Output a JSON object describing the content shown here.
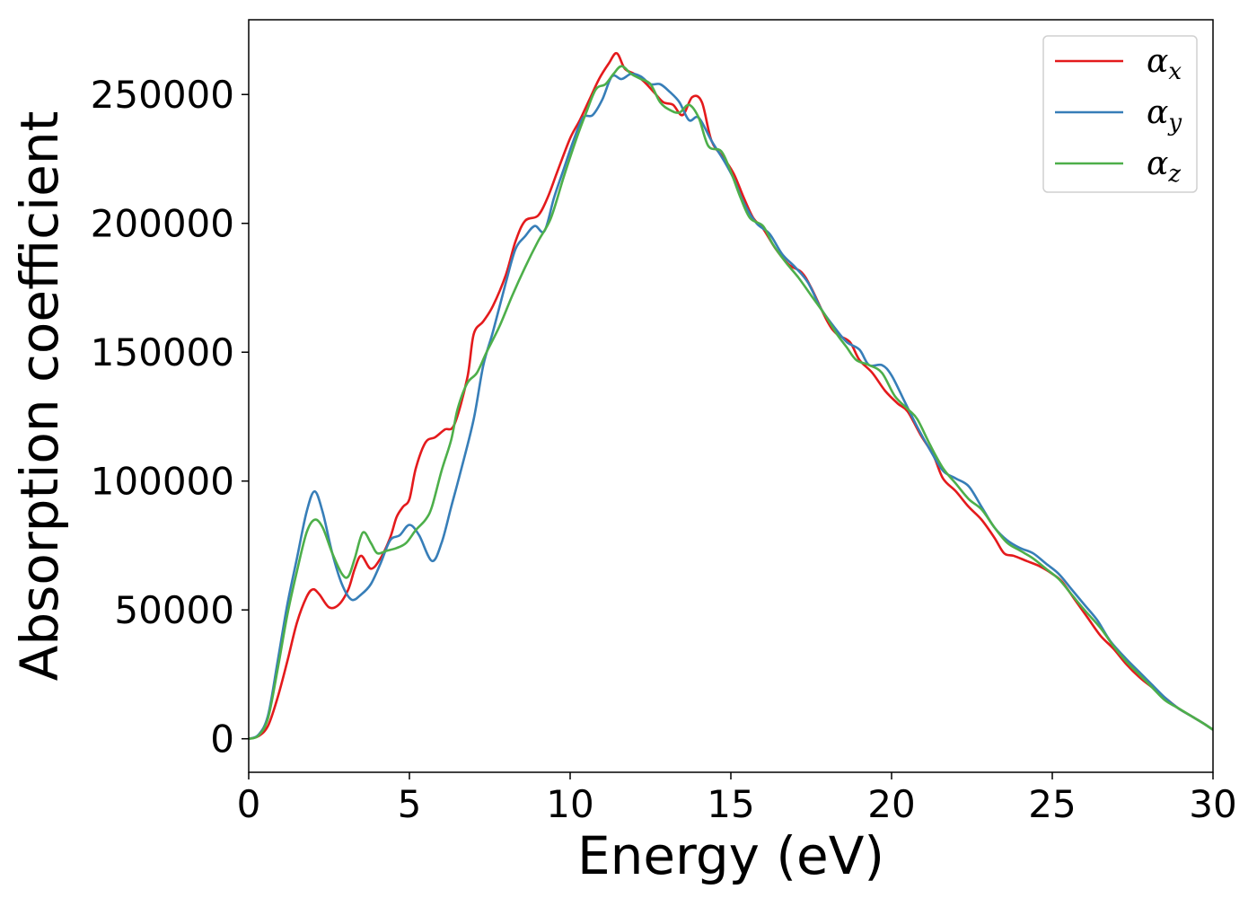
{
  "chart_data": {
    "type": "line",
    "xlabel": "Energy (eV)",
    "ylabel": "Absorption coefficient",
    "xlim": [
      0,
      30
    ],
    "ylim": [
      -13000,
      279000
    ],
    "xticks": [
      0,
      5,
      10,
      15,
      20,
      25,
      30
    ],
    "yticks": [
      0,
      50000,
      100000,
      150000,
      200000,
      250000
    ],
    "grid": false,
    "legend_position": "top-right",
    "series": [
      {
        "name": "α",
        "subscript": "x",
        "color": "#e41a1c",
        "points": [
          [
            0,
            0
          ],
          [
            0.3,
            1000
          ],
          [
            0.6,
            5000
          ],
          [
            0.9,
            16000
          ],
          [
            1.2,
            30000
          ],
          [
            1.5,
            45000
          ],
          [
            1.8,
            55000
          ],
          [
            2.0,
            58000
          ],
          [
            2.2,
            56000
          ],
          [
            2.5,
            51000
          ],
          [
            2.8,
            52000
          ],
          [
            3.1,
            58000
          ],
          [
            3.3,
            66000
          ],
          [
            3.5,
            71000
          ],
          [
            3.8,
            66000
          ],
          [
            4.1,
            70000
          ],
          [
            4.4,
            78000
          ],
          [
            4.6,
            86000
          ],
          [
            4.8,
            90000
          ],
          [
            5.0,
            93000
          ],
          [
            5.2,
            105000
          ],
          [
            5.5,
            115000
          ],
          [
            5.8,
            117000
          ],
          [
            6.1,
            120000
          ],
          [
            6.4,
            122000
          ],
          [
            6.8,
            140000
          ],
          [
            7.0,
            157000
          ],
          [
            7.3,
            162000
          ],
          [
            7.6,
            168000
          ],
          [
            8.0,
            180000
          ],
          [
            8.3,
            193000
          ],
          [
            8.6,
            201000
          ],
          [
            9.0,
            203000
          ],
          [
            9.3,
            210000
          ],
          [
            9.6,
            220000
          ],
          [
            10.0,
            233000
          ],
          [
            10.3,
            240000
          ],
          [
            10.6,
            248000
          ],
          [
            10.9,
            256000
          ],
          [
            11.2,
            262000
          ],
          [
            11.45,
            266000
          ],
          [
            11.7,
            260000
          ],
          [
            12.0,
            258000
          ],
          [
            12.3,
            255000
          ],
          [
            12.6,
            251000
          ],
          [
            12.9,
            247000
          ],
          [
            13.2,
            246000
          ],
          [
            13.5,
            242000
          ],
          [
            13.8,
            249000
          ],
          [
            14.1,
            247000
          ],
          [
            14.4,
            232000
          ],
          [
            14.8,
            225000
          ],
          [
            15.1,
            219000
          ],
          [
            15.4,
            210000
          ],
          [
            15.7,
            202000
          ],
          [
            16.0,
            198000
          ],
          [
            16.4,
            190000
          ],
          [
            16.8,
            184000
          ],
          [
            17.2,
            181000
          ],
          [
            17.5,
            175000
          ],
          [
            18.0,
            162000
          ],
          [
            18.3,
            157000
          ],
          [
            18.7,
            154000
          ],
          [
            19.0,
            147000
          ],
          [
            19.4,
            142000
          ],
          [
            19.8,
            135000
          ],
          [
            20.2,
            130000
          ],
          [
            20.5,
            127000
          ],
          [
            20.9,
            118000
          ],
          [
            21.3,
            110000
          ],
          [
            21.6,
            101000
          ],
          [
            22.0,
            96000
          ],
          [
            22.4,
            90000
          ],
          [
            22.8,
            85000
          ],
          [
            23.2,
            78000
          ],
          [
            23.5,
            72000
          ],
          [
            23.8,
            71000
          ],
          [
            24.2,
            69000
          ],
          [
            24.6,
            67000
          ],
          [
            25.0,
            64000
          ],
          [
            25.3,
            61000
          ],
          [
            25.7,
            54000
          ],
          [
            26.1,
            47000
          ],
          [
            26.5,
            40000
          ],
          [
            26.9,
            35000
          ],
          [
            27.3,
            29000
          ],
          [
            27.7,
            24000
          ],
          [
            28.1,
            20000
          ],
          [
            28.5,
            16000
          ],
          [
            28.9,
            12000
          ],
          [
            29.3,
            9000
          ],
          [
            29.7,
            6000
          ],
          [
            30.0,
            3500
          ]
        ]
      },
      {
        "name": "α",
        "subscript": "y",
        "color": "#377eb8",
        "points": [
          [
            0,
            0
          ],
          [
            0.3,
            1500
          ],
          [
            0.6,
            9000
          ],
          [
            0.9,
            30000
          ],
          [
            1.2,
            52000
          ],
          [
            1.5,
            70000
          ],
          [
            1.8,
            88000
          ],
          [
            2.05,
            96000
          ],
          [
            2.3,
            88000
          ],
          [
            2.6,
            72000
          ],
          [
            2.9,
            60000
          ],
          [
            3.2,
            54000
          ],
          [
            3.5,
            56000
          ],
          [
            3.8,
            60000
          ],
          [
            4.1,
            68000
          ],
          [
            4.4,
            77000
          ],
          [
            4.7,
            79000
          ],
          [
            5.0,
            83000
          ],
          [
            5.3,
            79000
          ],
          [
            5.7,
            69000
          ],
          [
            6.0,
            76000
          ],
          [
            6.3,
            90000
          ],
          [
            6.6,
            104000
          ],
          [
            7.0,
            124000
          ],
          [
            7.3,
            145000
          ],
          [
            7.6,
            158000
          ],
          [
            8.0,
            177000
          ],
          [
            8.3,
            190000
          ],
          [
            8.6,
            195000
          ],
          [
            8.9,
            199000
          ],
          [
            9.2,
            197000
          ],
          [
            9.5,
            210000
          ],
          [
            9.8,
            221000
          ],
          [
            10.1,
            232000
          ],
          [
            10.4,
            241000
          ],
          [
            10.7,
            242000
          ],
          [
            11.0,
            248000
          ],
          [
            11.3,
            257000
          ],
          [
            11.6,
            256000
          ],
          [
            11.9,
            258000
          ],
          [
            12.2,
            257000
          ],
          [
            12.5,
            254000
          ],
          [
            12.8,
            254000
          ],
          [
            13.1,
            251000
          ],
          [
            13.4,
            247000
          ],
          [
            13.7,
            240000
          ],
          [
            14.0,
            241000
          ],
          [
            14.4,
            232000
          ],
          [
            14.8,
            224000
          ],
          [
            15.1,
            217000
          ],
          [
            15.4,
            208000
          ],
          [
            15.8,
            200000
          ],
          [
            16.2,
            196000
          ],
          [
            16.6,
            188000
          ],
          [
            17.0,
            183000
          ],
          [
            17.4,
            177000
          ],
          [
            17.8,
            167000
          ],
          [
            18.2,
            160000
          ],
          [
            18.6,
            154000
          ],
          [
            19.0,
            151000
          ],
          [
            19.3,
            145000
          ],
          [
            19.7,
            145000
          ],
          [
            20.0,
            141000
          ],
          [
            20.4,
            131000
          ],
          [
            20.8,
            121000
          ],
          [
            21.2,
            112000
          ],
          [
            21.6,
            104000
          ],
          [
            22.0,
            101000
          ],
          [
            22.4,
            98000
          ],
          [
            22.8,
            90000
          ],
          [
            23.2,
            82000
          ],
          [
            23.6,
            77000
          ],
          [
            24.0,
            74000
          ],
          [
            24.4,
            72000
          ],
          [
            24.8,
            68000
          ],
          [
            25.2,
            64000
          ],
          [
            25.6,
            58000
          ],
          [
            26.0,
            52000
          ],
          [
            26.4,
            46000
          ],
          [
            26.8,
            38000
          ],
          [
            27.3,
            31000
          ],
          [
            27.7,
            26000
          ],
          [
            28.1,
            21000
          ],
          [
            28.5,
            16000
          ],
          [
            28.9,
            12000
          ],
          [
            29.3,
            9000
          ],
          [
            29.7,
            6000
          ],
          [
            30.0,
            3500
          ]
        ]
      },
      {
        "name": "α",
        "subscript": "z",
        "color": "#4daf4a",
        "points": [
          [
            0,
            0
          ],
          [
            0.3,
            1200
          ],
          [
            0.6,
            8000
          ],
          [
            0.9,
            27000
          ],
          [
            1.2,
            48000
          ],
          [
            1.5,
            65000
          ],
          [
            1.8,
            80000
          ],
          [
            2.05,
            85000
          ],
          [
            2.3,
            82000
          ],
          [
            2.6,
            72000
          ],
          [
            2.9,
            64000
          ],
          [
            3.1,
            63000
          ],
          [
            3.3,
            70000
          ],
          [
            3.55,
            80000
          ],
          [
            3.8,
            76000
          ],
          [
            4.0,
            72000
          ],
          [
            4.3,
            73000
          ],
          [
            4.6,
            74000
          ],
          [
            4.9,
            76000
          ],
          [
            5.2,
            81000
          ],
          [
            5.5,
            85000
          ],
          [
            5.7,
            90000
          ],
          [
            6.0,
            104000
          ],
          [
            6.3,
            116000
          ],
          [
            6.5,
            128000
          ],
          [
            6.8,
            138000
          ],
          [
            7.1,
            142000
          ],
          [
            7.4,
            150000
          ],
          [
            7.8,
            160000
          ],
          [
            8.2,
            172000
          ],
          [
            8.6,
            183000
          ],
          [
            9.0,
            193000
          ],
          [
            9.4,
            202000
          ],
          [
            9.8,
            218000
          ],
          [
            10.2,
            233000
          ],
          [
            10.5,
            243000
          ],
          [
            10.8,
            252000
          ],
          [
            11.1,
            254000
          ],
          [
            11.35,
            258000
          ],
          [
            11.6,
            261000
          ],
          [
            11.9,
            258000
          ],
          [
            12.2,
            256000
          ],
          [
            12.5,
            254000
          ],
          [
            12.8,
            247000
          ],
          [
            13.1,
            244000
          ],
          [
            13.4,
            243000
          ],
          [
            13.7,
            246000
          ],
          [
            14.0,
            241000
          ],
          [
            14.3,
            230000
          ],
          [
            14.7,
            228000
          ],
          [
            15.0,
            220000
          ],
          [
            15.3,
            210000
          ],
          [
            15.6,
            202000
          ],
          [
            16.0,
            199000
          ],
          [
            16.3,
            192000
          ],
          [
            16.7,
            185000
          ],
          [
            17.1,
            179000
          ],
          [
            17.5,
            172000
          ],
          [
            17.9,
            165000
          ],
          [
            18.3,
            157000
          ],
          [
            18.6,
            152000
          ],
          [
            18.9,
            147000
          ],
          [
            19.3,
            145000
          ],
          [
            19.7,
            142000
          ],
          [
            20.1,
            133000
          ],
          [
            20.5,
            128000
          ],
          [
            20.8,
            124000
          ],
          [
            21.2,
            114000
          ],
          [
            21.6,
            105000
          ],
          [
            22.0,
            99000
          ],
          [
            22.4,
            93000
          ],
          [
            22.8,
            89000
          ],
          [
            23.2,
            82000
          ],
          [
            23.6,
            76000
          ],
          [
            24.0,
            73000
          ],
          [
            24.4,
            70000
          ],
          [
            24.8,
            66000
          ],
          [
            25.2,
            62000
          ],
          [
            25.6,
            56000
          ],
          [
            26.0,
            50000
          ],
          [
            26.5,
            43000
          ],
          [
            26.9,
            36000
          ],
          [
            27.3,
            30000
          ],
          [
            27.7,
            25000
          ],
          [
            28.1,
            20000
          ],
          [
            28.5,
            15000
          ],
          [
            28.9,
            12000
          ],
          [
            29.3,
            9000
          ],
          [
            29.7,
            6000
          ],
          [
            30.0,
            3500
          ]
        ]
      }
    ]
  }
}
